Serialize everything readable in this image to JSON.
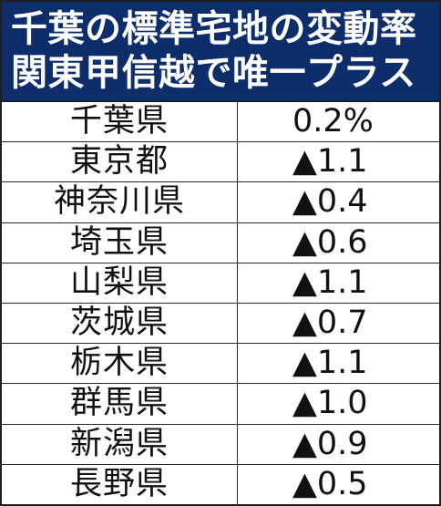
{
  "title": {
    "line1": "千葉の標準宅地の変動率",
    "line2": "関東甲信越で唯一プラス"
  },
  "colors": {
    "header_background": "#0d2d6b",
    "header_text": "#ffffff",
    "table_text": "#111111",
    "border": "#1f1f1f"
  },
  "chart_data": {
    "type": "table",
    "title": "千葉の標準宅地の変動率 関東甲信越で唯一プラス",
    "rows": [
      {
        "prefecture": "千葉県",
        "value": "0.2%"
      },
      {
        "prefecture": "東京都",
        "value": "▲1.1"
      },
      {
        "prefecture": "神奈川県",
        "value": "▲0.4"
      },
      {
        "prefecture": "埼玉県",
        "value": "▲0.6"
      },
      {
        "prefecture": "山梨県",
        "value": "▲1.1"
      },
      {
        "prefecture": "茨城県",
        "value": "▲0.7"
      },
      {
        "prefecture": "栃木県",
        "value": "▲1.1"
      },
      {
        "prefecture": "群馬県",
        "value": "▲1.0"
      },
      {
        "prefecture": "新潟県",
        "value": "▲0.9"
      },
      {
        "prefecture": "長野県",
        "value": "▲0.5"
      }
    ]
  }
}
